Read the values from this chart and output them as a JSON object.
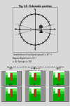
{
  "title_top": "Fig. 14 - Schematic position",
  "top_text1": "Consideration of swell peak spread (± 15°) +",
  "top_text2": "Angular dispersion (± 15°)",
  "top_text3": "= 45° latitude (± 30°)",
  "bottom_title": "Taking into account the maximum rotation of the angle of attack",
  "bottom_sub1": "of the forme",
  "bottom_sub2": "= most forms: -30° (± one °)  n",
  "angles_top": [
    "-30°",
    "0°",
    "+30°"
  ],
  "angles_bot": [
    "-60°",
    "0°",
    "+60°"
  ],
  "page_bg": "#d8d8d8",
  "top_section_bg": "#ffffff",
  "bottom_section_bg": "#aaaaaa",
  "panel_bg": "#8faf8f",
  "pillar_color": "#909090",
  "green_dark": "#00aa00",
  "green_mid": "#22cc22",
  "green_light": "#66ee66",
  "red_color": "#cc2222",
  "white_color": "#ffffff",
  "teal_color": "#55bbaa"
}
